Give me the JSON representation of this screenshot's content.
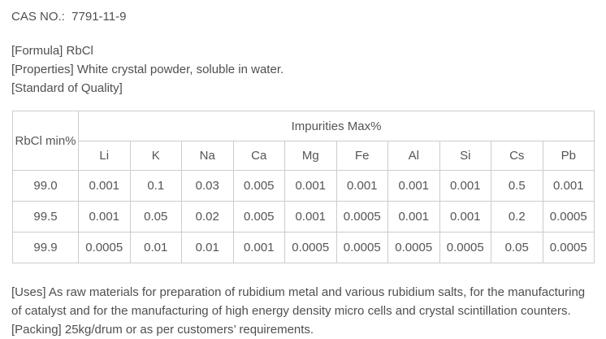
{
  "header": {
    "cas_line": "CAS NO.:  7791-11-9"
  },
  "info": {
    "formula": "[Formula] RbCl",
    "properties": "[Properties] White crystal powder, soluble in water.",
    "standard": "[Standard of Quality]"
  },
  "table": {
    "row_header": "RbCl min%",
    "group_header": "Impurities Max%",
    "columns": [
      "Li",
      "K",
      "Na",
      "Ca",
      "Mg",
      "Fe",
      "Al",
      "Si",
      "Cs",
      "Pb"
    ],
    "rows": [
      {
        "rbcl": "99.0",
        "values": [
          "0.001",
          "0.1",
          "0.03",
          "0.005",
          "0.001",
          "0.001",
          "0.001",
          "0.001",
          "0.5",
          "0.001"
        ]
      },
      {
        "rbcl": "99.5",
        "values": [
          "0.001",
          "0.05",
          "0.02",
          "0.005",
          "0.001",
          "0.0005",
          "0.001",
          "0.001",
          "0.2",
          "0.0005"
        ]
      },
      {
        "rbcl": "99.9",
        "values": [
          "0.0005",
          "0.01",
          "0.01",
          "0.001",
          "0.0005",
          "0.0005",
          "0.0005",
          "0.0005",
          "0.05",
          "0.0005"
        ]
      }
    ]
  },
  "footer": {
    "uses": "[Uses] As raw materials for preparation of rubidium metal and various rubidium salts, for the manufacturing of catalyst and for the manufacturing of high energy density micro cells and crystal scintillation counters.",
    "packing": "[Packing] 25kg/drum or as per customers’ requirements."
  },
  "colors": {
    "text": "#4f4f4f",
    "table_text": "#555555",
    "table_border": "#cccccc",
    "background": "#ffffff"
  }
}
